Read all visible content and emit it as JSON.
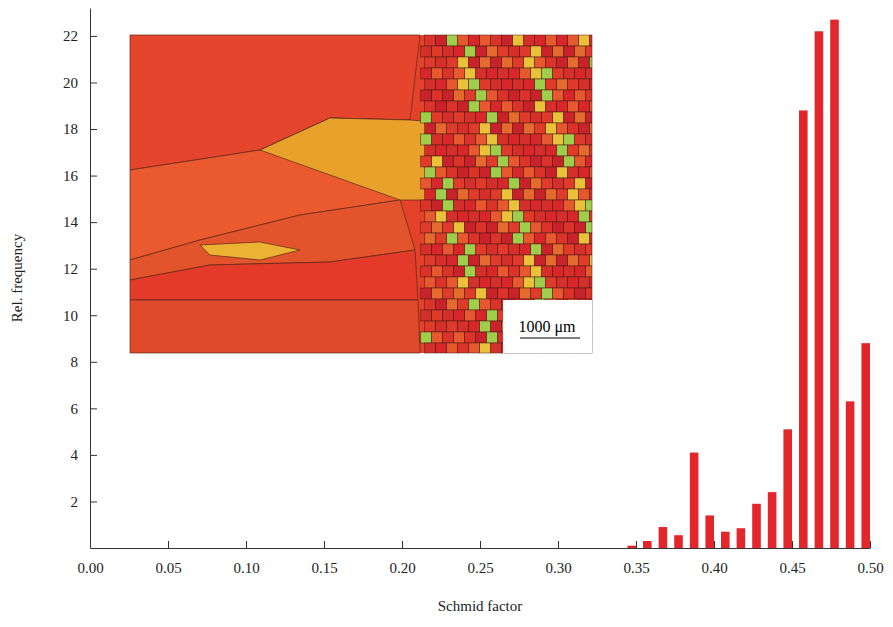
{
  "chart_data": {
    "type": "histogram",
    "x_label": "Schmid factor",
    "y_label": "Rel. frequency",
    "annotations": [
      "1000 μm"
    ],
    "bins": [
      0.34,
      0.35,
      0.36,
      0.37,
      0.38,
      0.39,
      0.4,
      0.41,
      0.42,
      0.43,
      0.44,
      0.45,
      0.46,
      0.47,
      0.48,
      0.49,
      0.5
    ],
    "values": [
      0.1,
      0.3,
      0.9,
      0.55,
      4.1,
      1.4,
      0.7,
      0.85,
      1.9,
      2.4,
      5.1,
      18.8,
      22.2,
      22.7,
      6.3,
      8.8
    ],
    "color": "#e3262b",
    "xlim": [
      0,
      0.5
    ],
    "xticks": [
      {
        "value": 0,
        "label": "0.00"
      },
      0.05,
      {
        "value": 0.1,
        "label": "0.10"
      },
      0.15,
      {
        "value": 0.2,
        "label": "0.20"
      },
      0.25,
      {
        "value": 0.3,
        "label": "0.30"
      },
      0.35,
      {
        "value": 0.4,
        "label": "0.40"
      },
      0.45,
      {
        "value": 0.5,
        "label": "0.50"
      }
    ],
    "ylim": [
      0,
      23.2
    ],
    "yticks": [
      2,
      4,
      6,
      8,
      10,
      12,
      14,
      16,
      18,
      20,
      22
    ],
    "grid": false
  }
}
